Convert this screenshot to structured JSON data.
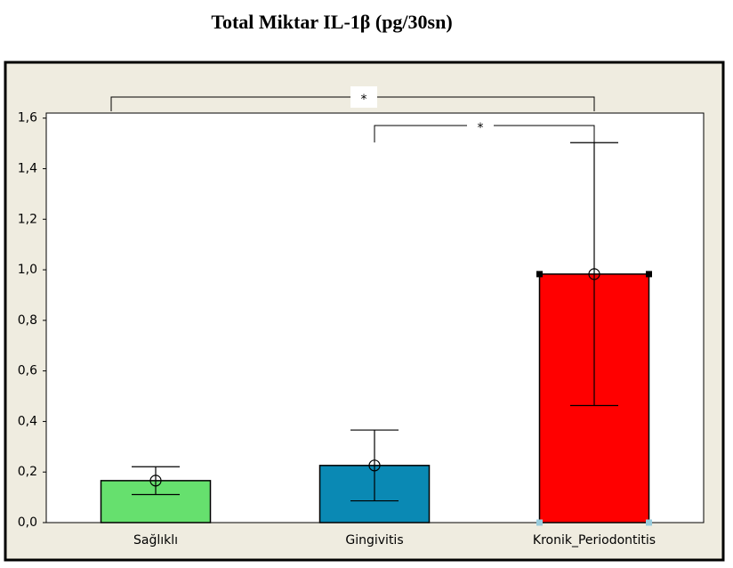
{
  "chart_data": {
    "type": "bar",
    "title": "Total Miktar IL-1β (pg/30sn)",
    "categories": [
      "Sağlıklı",
      "Gingivitis",
      "Kronik_Periodontitis"
    ],
    "values": [
      0.166,
      0.226,
      0.983
    ],
    "errors": [
      0.055,
      0.14,
      0.52
    ],
    "colors": [
      "#66e06e",
      "#0a89b4",
      "#ff0000"
    ],
    "ylim": [
      0,
      1.62
    ],
    "yticks": [
      {
        "value": 0,
        "label": "0,0"
      },
      {
        "value": 0.2,
        "label": "0,2"
      },
      {
        "value": 0.4,
        "label": "0,4"
      },
      {
        "value": 0.6,
        "label": "0,6"
      },
      {
        "value": 0.8,
        "label": "0,8"
      },
      {
        "value": 1.0,
        "label": "1,0"
      },
      {
        "value": 1.2,
        "label": "1,2"
      },
      {
        "value": 1.4,
        "label": "1,4"
      },
      {
        "value": 1.6,
        "label": "1,6"
      }
    ],
    "significance": [
      {
        "label": "*",
        "pair": [
          0,
          2
        ]
      },
      {
        "label": "*",
        "pair": [
          1,
          2
        ]
      }
    ]
  }
}
